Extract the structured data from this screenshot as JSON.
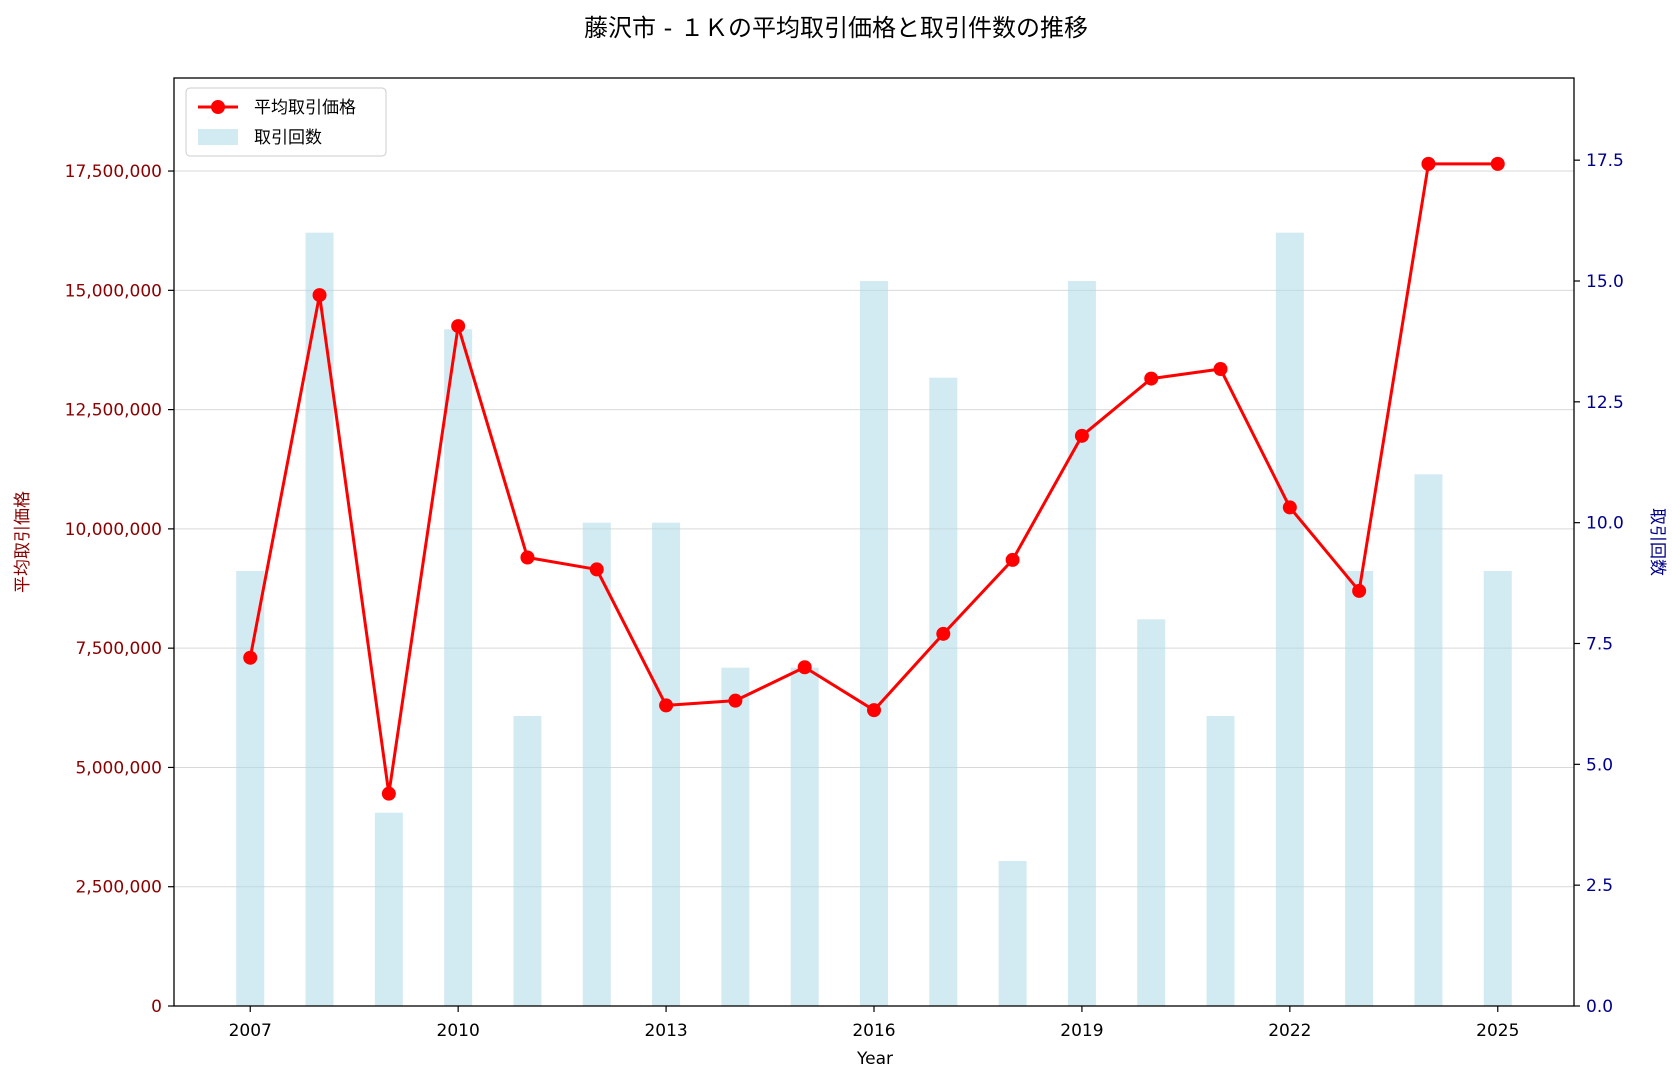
{
  "chart_data": {
    "type": "bar+line",
    "title": "藤沢市 - １Ｋの平均取引価格と取引件数の推移",
    "xlabel": "Year",
    "ylabel_left": "平均取引価格",
    "ylabel_right": "取引回数",
    "x": [
      2007,
      2008,
      2009,
      2010,
      2011,
      2012,
      2013,
      2014,
      2015,
      2016,
      2017,
      2018,
      2019,
      2020,
      2021,
      2022,
      2023,
      2024,
      2025
    ],
    "x_ticks": [
      "2007",
      "2010",
      "2013",
      "2016",
      "2019",
      "2022",
      "2025"
    ],
    "xlim": [
      2005.9,
      2026.1
    ],
    "ylim_left": [
      0,
      19450000
    ],
    "ylim_right": [
      0,
      19.2
    ],
    "y_left_ticks": [
      "0",
      "2,500,000",
      "5,000,000",
      "7,500,000",
      "10,000,000",
      "12,500,000",
      "15,000,000",
      "17,500,000"
    ],
    "y_left_tick_values": [
      0,
      2500000,
      5000000,
      7500000,
      10000000,
      12500000,
      15000000,
      17500000
    ],
    "y_right_ticks": [
      "0.0",
      "2.5",
      "5.0",
      "7.5",
      "10.0",
      "12.5",
      "15.0",
      "17.5"
    ],
    "y_right_tick_values": [
      0,
      2.5,
      5,
      7.5,
      10,
      12.5,
      15,
      17.5
    ],
    "grid": "horizontal",
    "legend_position": "top-left",
    "series": [
      {
        "name": "平均取引価格",
        "type": "line",
        "axis": "left",
        "color": "#ff0000",
        "values": [
          7300000,
          14900000,
          4450000,
          14250000,
          9400000,
          9150000,
          6300000,
          6400000,
          7100000,
          6200000,
          7800000,
          9350000,
          11950000,
          13150000,
          13350000,
          10450000,
          8700000,
          17650000,
          17650000
        ]
      },
      {
        "name": "取引回数",
        "type": "bar",
        "axis": "right",
        "color": "#add8e6",
        "values": [
          9,
          16,
          4,
          14,
          6,
          10,
          10,
          7,
          7,
          15,
          13,
          3,
          15,
          8,
          6,
          16,
          9,
          11,
          9
        ]
      }
    ]
  }
}
